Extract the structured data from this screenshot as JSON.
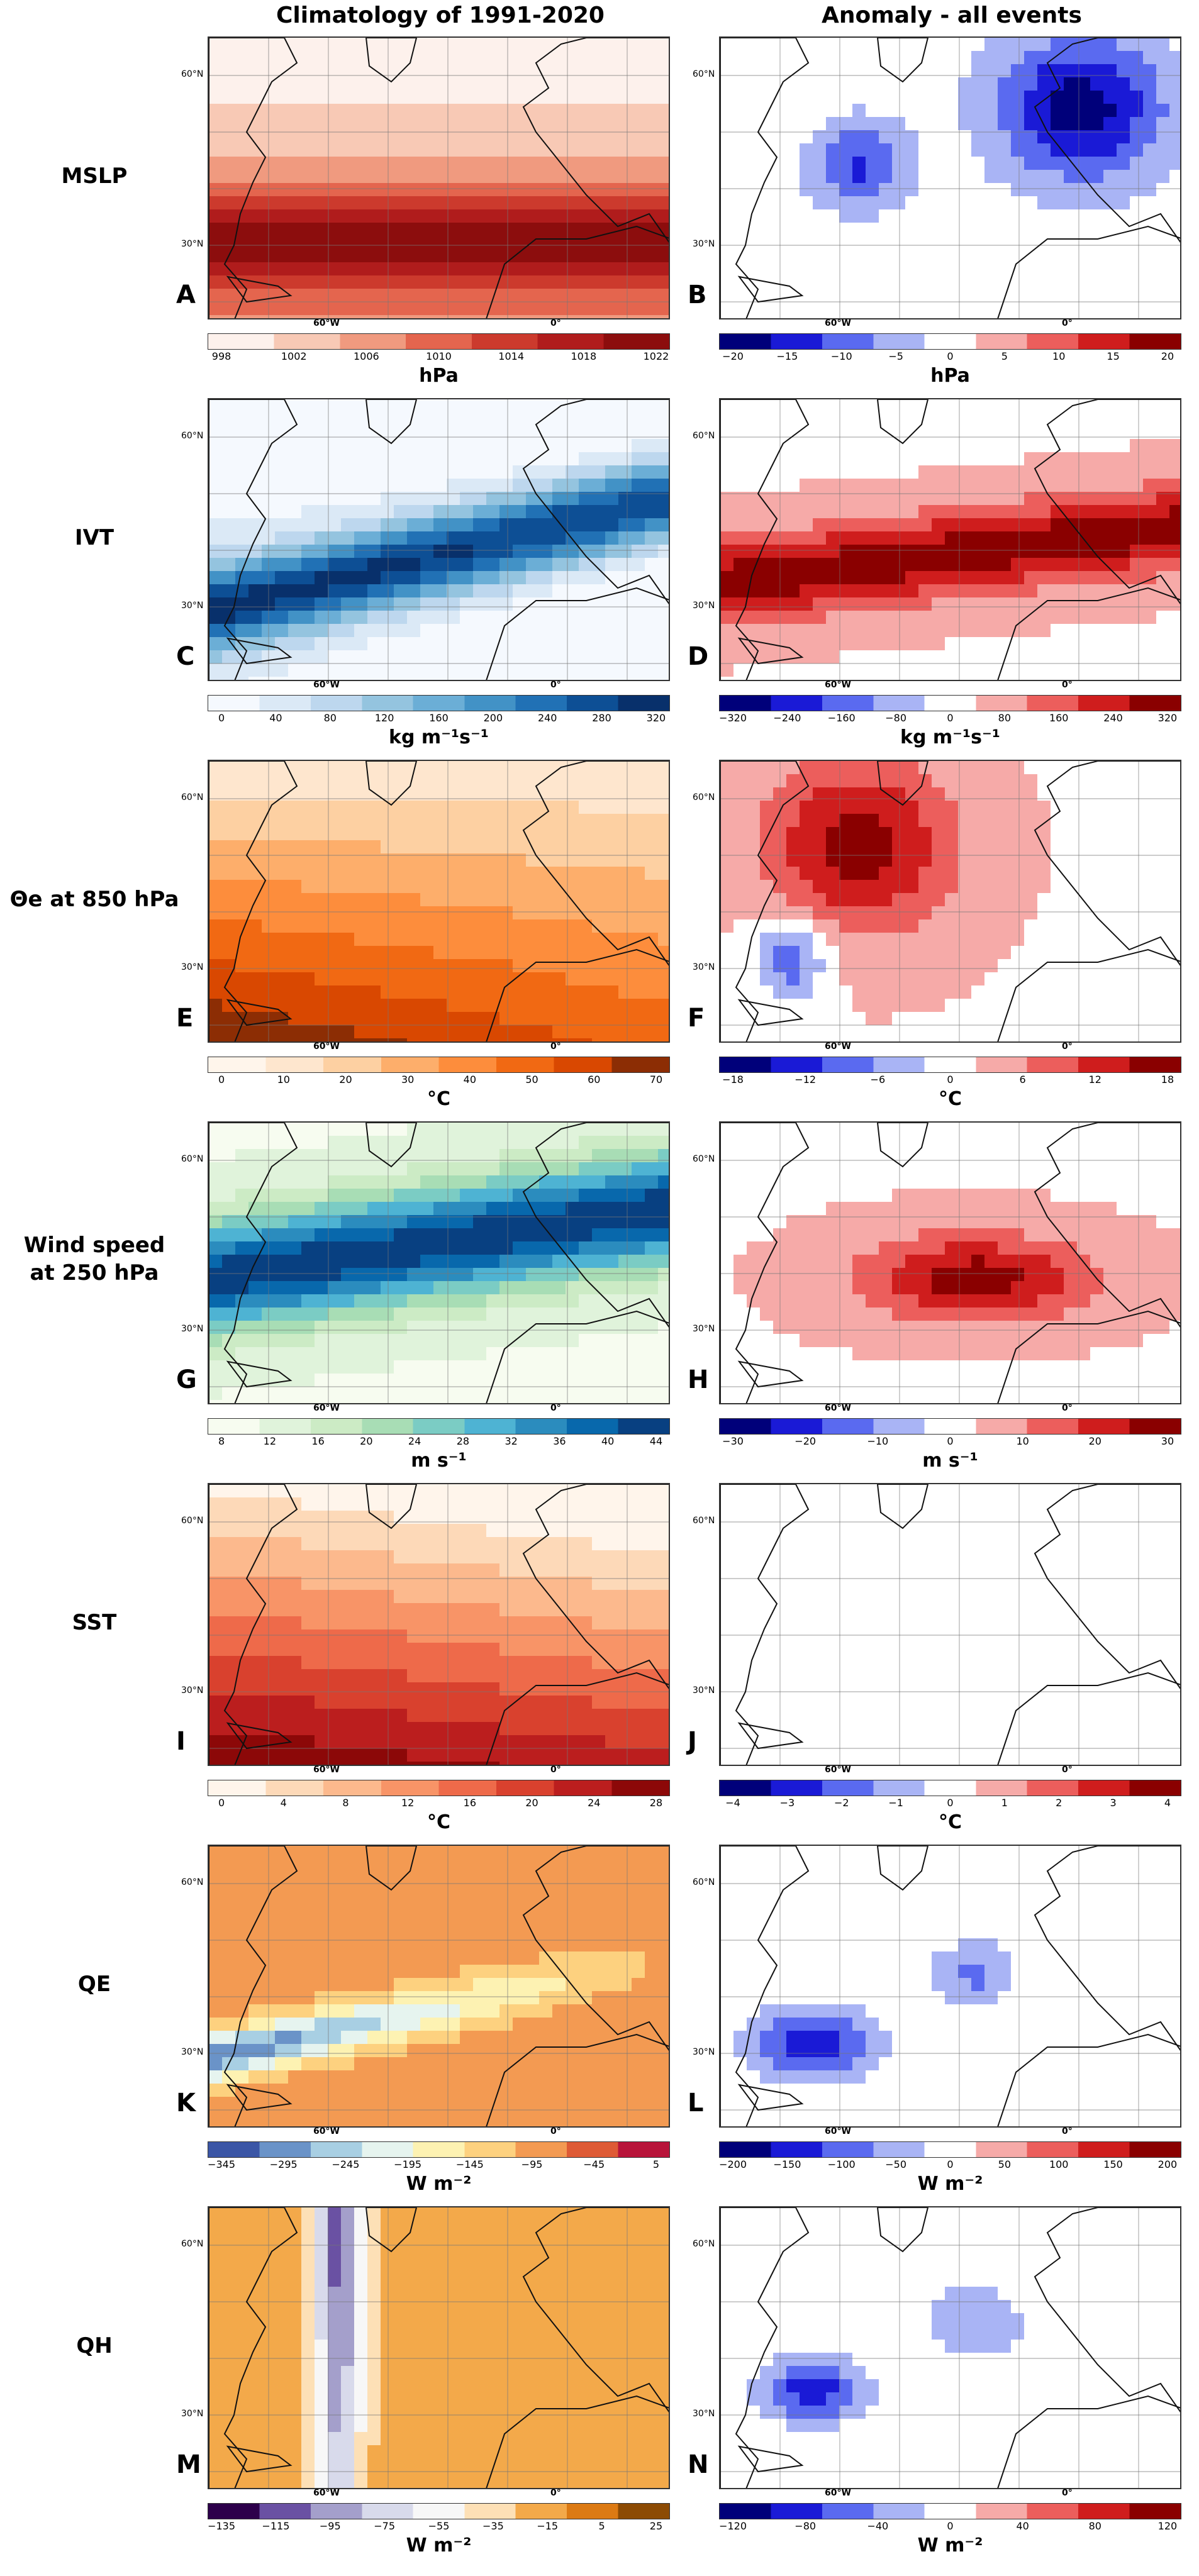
{
  "headers": {
    "left": "Climatology of 1991-2020",
    "right": "Anomaly - all events"
  },
  "map_labels": {
    "lat_60": "60°N",
    "lat_30": "30°N",
    "lon_60w": "60°W",
    "lon_0": "0°"
  },
  "rows": [
    {
      "label": "MSLP",
      "left": {
        "letter": "A",
        "unit": "hPa",
        "ticks": [
          "998",
          "1002",
          "1006",
          "1010",
          "1014",
          "1018",
          "1022"
        ],
        "colors": [
          "#fdf1ec",
          "#f8c9b5",
          "#f09a7f",
          "#e4654e",
          "#cc3a2d",
          "#b01c1c",
          "#8c0d0d"
        ]
      },
      "right": {
        "letter": "B",
        "unit": "hPa",
        "ticks": [
          "−20",
          "−15",
          "−10",
          "−5",
          "0",
          "5",
          "10",
          "15",
          "20"
        ],
        "colors": [
          "#00007a",
          "#1a1ad6",
          "#5a6af0",
          "#a9b4f5",
          "#ffffff",
          "#f6aaa8",
          "#ec5e5c",
          "#cf1d1d",
          "#8a0000"
        ]
      }
    },
    {
      "label": "IVT",
      "left": {
        "letter": "C",
        "unit": "kg m⁻¹s⁻¹",
        "ticks": [
          "0",
          "40",
          "80",
          "120",
          "160",
          "200",
          "240",
          "280",
          "320"
        ],
        "colors": [
          "#f5f9fe",
          "#dbe9f6",
          "#bdd7ee",
          "#94c4df",
          "#6baed6",
          "#4292c6",
          "#2171b5",
          "#0d4f95",
          "#08306b"
        ]
      },
      "right": {
        "letter": "D",
        "unit": "kg m⁻¹s⁻¹",
        "ticks": [
          "−320",
          "−240",
          "−160",
          "−80",
          "0",
          "80",
          "160",
          "240",
          "320"
        ],
        "colors": [
          "#00007a",
          "#1a1ad6",
          "#5a6af0",
          "#a9b4f5",
          "#ffffff",
          "#f6aaa8",
          "#ec5e5c",
          "#cf1d1d",
          "#8a0000"
        ]
      }
    },
    {
      "label": "Θe at 850 hPa",
      "left": {
        "letter": "E",
        "unit": "°C",
        "ticks": [
          "0",
          "10",
          "20",
          "30",
          "40",
          "50",
          "60",
          "70"
        ],
        "colors": [
          "#fff5eb",
          "#fee6ce",
          "#fdd0a2",
          "#fdae6b",
          "#fd8d3c",
          "#f16913",
          "#d94801",
          "#8c2d04"
        ]
      },
      "right": {
        "letter": "F",
        "unit": "°C",
        "ticks": [
          "−18",
          "−12",
          "−6",
          "0",
          "6",
          "12",
          "18"
        ],
        "colors": [
          "#00007a",
          "#1a1ad6",
          "#5a6af0",
          "#a9b4f5",
          "#ffffff",
          "#f6aaa8",
          "#ec5e5c",
          "#cf1d1d",
          "#8a0000"
        ]
      }
    },
    {
      "label": "Wind speed at 250 hPa",
      "label_lines": [
        "Wind speed",
        "at 250 hPa"
      ],
      "left": {
        "letter": "G",
        "unit": "m s⁻¹",
        "ticks": [
          "8",
          "12",
          "16",
          "20",
          "24",
          "28",
          "32",
          "36",
          "40",
          "44"
        ],
        "colors": [
          "#f7fcf0",
          "#e0f3db",
          "#ccebc5",
          "#a8ddb5",
          "#7bccc4",
          "#4eb3d3",
          "#2b8cbe",
          "#0868ac",
          "#084081"
        ]
      },
      "right": {
        "letter": "H",
        "unit": "m s⁻¹",
        "ticks": [
          "−30",
          "−20",
          "−10",
          "0",
          "10",
          "20",
          "30"
        ],
        "colors": [
          "#00007a",
          "#1a1ad6",
          "#5a6af0",
          "#a9b4f5",
          "#ffffff",
          "#f6aaa8",
          "#ec5e5c",
          "#cf1d1d",
          "#8a0000"
        ]
      }
    },
    {
      "label": "SST",
      "left": {
        "letter": "I",
        "unit": "°C",
        "ticks": [
          "0",
          "4",
          "8",
          "12",
          "16",
          "20",
          "24",
          "28"
        ],
        "colors": [
          "#fff5eb",
          "#fdd9b8",
          "#fcb98d",
          "#f89467",
          "#ee6a4a",
          "#d9412e",
          "#bb1e1e",
          "#8c0808"
        ]
      },
      "right": {
        "letter": "J",
        "unit": "°C",
        "ticks": [
          "−4",
          "−3",
          "−2",
          "−1",
          "0",
          "1",
          "2",
          "3",
          "4"
        ],
        "colors": [
          "#00007a",
          "#1a1ad6",
          "#5a6af0",
          "#a9b4f5",
          "#ffffff",
          "#f6aaa8",
          "#ec5e5c",
          "#cf1d1d",
          "#8a0000"
        ]
      }
    },
    {
      "label": "QE",
      "left": {
        "letter": "K",
        "unit": "W m⁻²",
        "ticks": [
          "−345",
          "−295",
          "−245",
          "−195",
          "−145",
          "−95",
          "−45",
          "5"
        ],
        "colors": [
          "#3b56a6",
          "#6a93c8",
          "#a8cfe3",
          "#e6f4ef",
          "#fdf2b2",
          "#fdd17f",
          "#f39a52",
          "#de5a35",
          "#b8143a"
        ]
      },
      "right": {
        "letter": "L",
        "unit": "W m⁻²",
        "ticks": [
          "−200",
          "−150",
          "−100",
          "−50",
          "0",
          "50",
          "100",
          "150",
          "200"
        ],
        "colors": [
          "#00007a",
          "#1a1ad6",
          "#5a6af0",
          "#a9b4f5",
          "#ffffff",
          "#f6aaa8",
          "#ec5e5c",
          "#cf1d1d",
          "#8a0000"
        ]
      }
    },
    {
      "label": "QH",
      "left": {
        "letter": "M",
        "unit": "W m⁻²",
        "ticks": [
          "−135",
          "−115",
          "−95",
          "−75",
          "−55",
          "−35",
          "−15",
          "5",
          "25"
        ],
        "colors": [
          "#2d004b",
          "#6a51a3",
          "#a49fcb",
          "#d8daeb",
          "#f7f7f7",
          "#fde0b6",
          "#f3a94a",
          "#dc7a14",
          "#8c4b04"
        ]
      },
      "right": {
        "letter": "N",
        "unit": "W m⁻²",
        "ticks": [
          "−120",
          "−80",
          "−40",
          "0",
          "40",
          "80",
          "120"
        ],
        "colors": [
          "#00007a",
          "#1a1ad6",
          "#5a6af0",
          "#a9b4f5",
          "#ffffff",
          "#f6aaa8",
          "#ec5e5c",
          "#cf1d1d",
          "#8a0000"
        ]
      }
    }
  ]
}
